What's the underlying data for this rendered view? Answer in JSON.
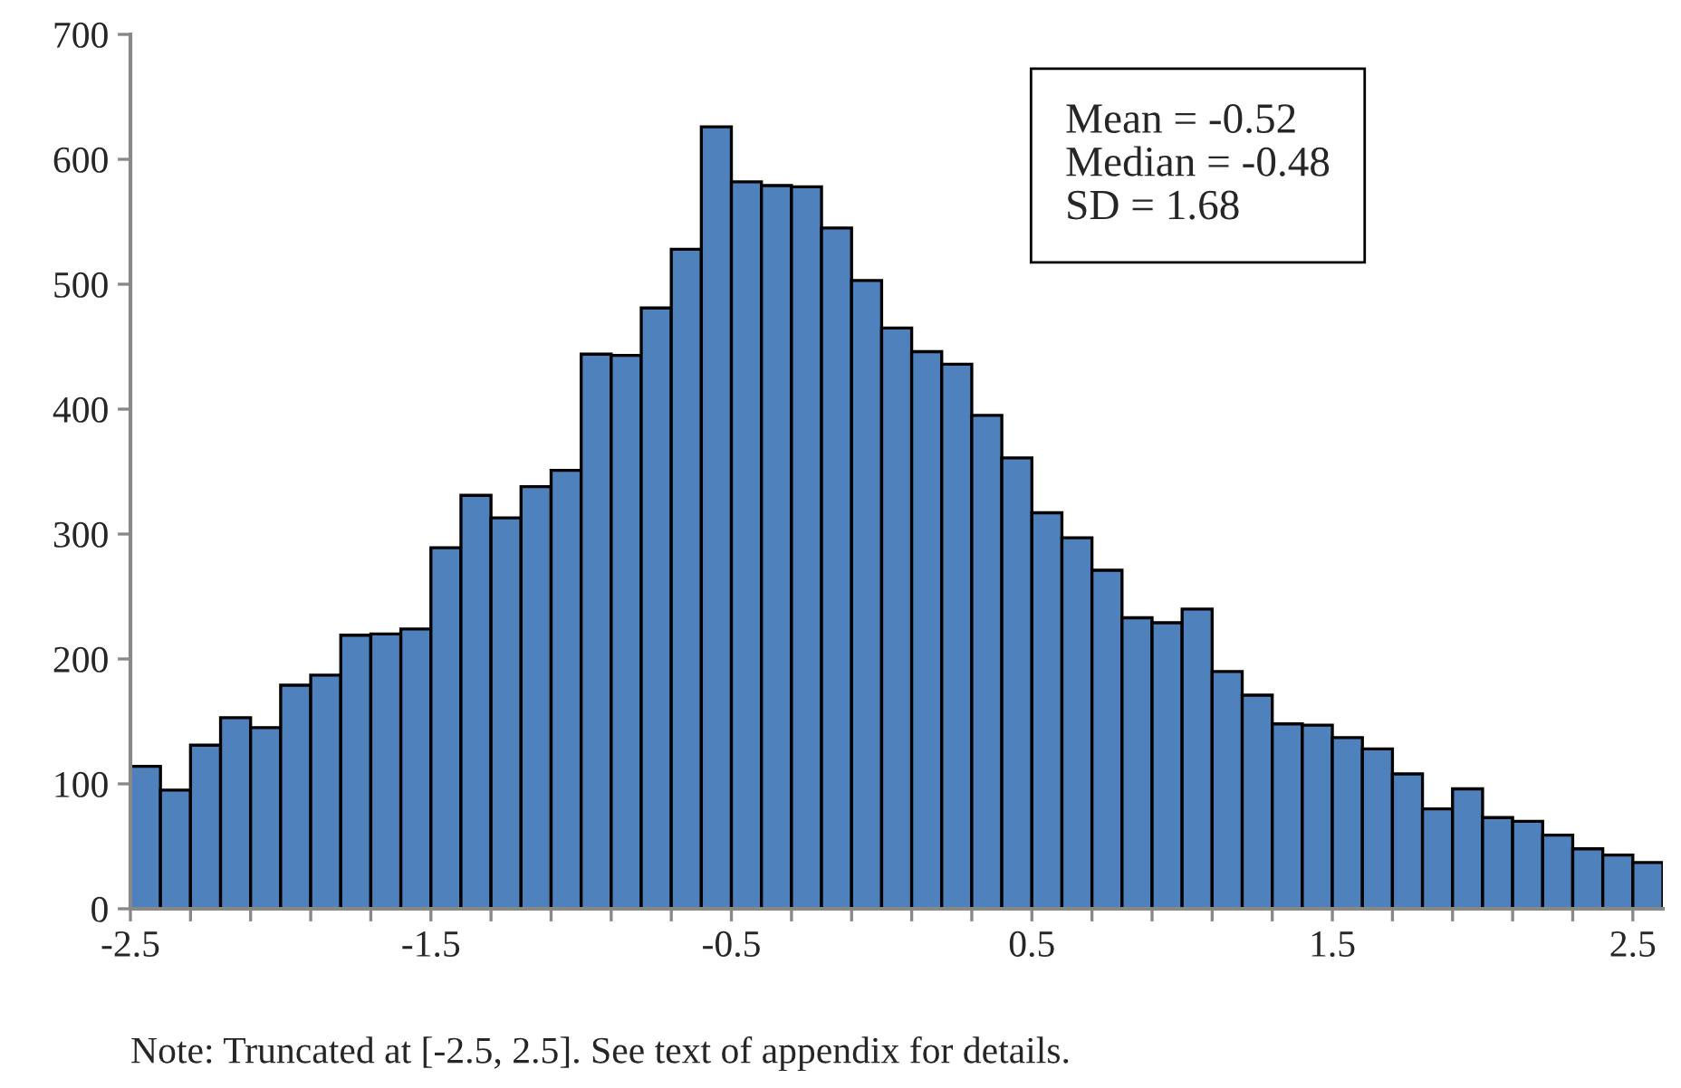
{
  "chart_data": {
    "type": "histogram",
    "bins": [
      -2.5,
      -2.4,
      -2.3,
      -2.2,
      -2.1,
      -2.0,
      -1.9,
      -1.8,
      -1.7,
      -1.6,
      -1.5,
      -1.4,
      -1.3,
      -1.2,
      -1.1,
      -1.0,
      -0.9,
      -0.8,
      -0.7,
      -0.6,
      -0.5,
      -0.4,
      -0.3,
      -0.2,
      -0.1,
      0.0,
      0.1,
      0.2,
      0.3,
      0.4,
      0.5,
      0.6,
      0.7,
      0.8,
      0.9,
      1.0,
      1.1,
      1.2,
      1.3,
      1.4,
      1.5,
      1.6,
      1.7,
      1.8,
      1.9,
      2.0,
      2.1,
      2.2,
      2.3,
      2.4,
      2.5,
      2.6
    ],
    "values": [
      114,
      95,
      131,
      153,
      145,
      179,
      187,
      219,
      220,
      224,
      289,
      331,
      313,
      338,
      351,
      444,
      443,
      481,
      528,
      626,
      582,
      579,
      578,
      545,
      503,
      465,
      446,
      436,
      395,
      361,
      317,
      297,
      271,
      233,
      229,
      240,
      190,
      171,
      148,
      147,
      137,
      128,
      108,
      80,
      96,
      73,
      70,
      59,
      48,
      43,
      37
    ],
    "color": "#4f81bd",
    "xlim": [
      -2.5,
      2.6
    ],
    "xticks": [
      -2.5,
      {
        "value": -2.3,
        "label": null
      },
      {
        "value": -2.1,
        "label": null
      },
      {
        "value": -1.9,
        "label": null
      },
      {
        "value": -1.7,
        "label": null
      },
      -1.5,
      {
        "value": -1.3,
        "label": null
      },
      {
        "value": -1.1,
        "label": null
      },
      {
        "value": -0.9,
        "label": null
      },
      {
        "value": -0.7,
        "label": null
      },
      -0.5,
      {
        "value": -0.3,
        "label": null
      },
      {
        "value": -0.1,
        "label": null
      },
      {
        "value": 0.1,
        "label": null
      },
      {
        "value": 0.3,
        "label": null
      },
      0.5,
      {
        "value": 0.7,
        "label": null
      },
      {
        "value": 0.9,
        "label": null
      },
      {
        "value": 1.1,
        "label": null
      },
      {
        "value": 1.3,
        "label": null
      },
      1.5,
      {
        "value": 1.7,
        "label": null
      },
      {
        "value": 1.9,
        "label": null
      },
      {
        "value": 2.1,
        "label": null
      },
      {
        "value": 2.3,
        "label": null
      },
      2.5
    ],
    "ylim": [
      0,
      700
    ],
    "yticks": [
      0,
      100,
      200,
      300,
      400,
      500,
      600,
      700
    ],
    "grid": false,
    "annotations": [
      "Mean = -0.52\nMedian = -0.48\nSD = 1.68",
      "Note: Truncated at [-2.5, 2.5]. See text of appendix for details."
    ]
  }
}
